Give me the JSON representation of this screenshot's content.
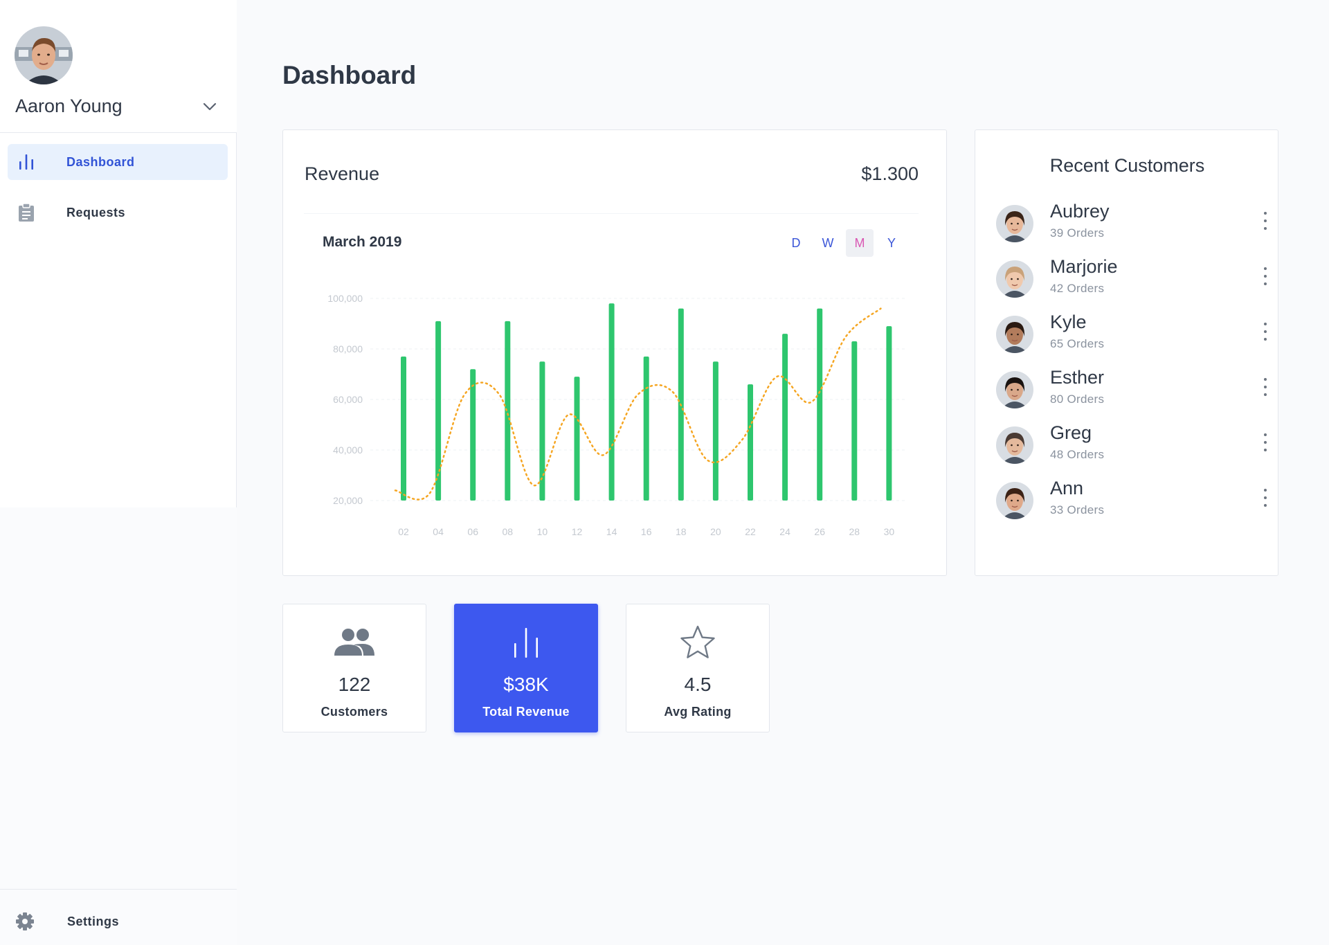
{
  "user": {
    "name": "Aaron Young"
  },
  "nav": {
    "items": [
      {
        "label": "Dashboard",
        "icon": "bar-chart-icon",
        "active": true
      },
      {
        "label": "Requests",
        "icon": "clipboard-icon",
        "active": false
      }
    ],
    "settings_label": "Settings"
  },
  "page": {
    "title": "Dashboard"
  },
  "revenue": {
    "title": "Revenue",
    "total": "$1.300",
    "period": "March 2019",
    "range_tabs": [
      "D",
      "W",
      "M",
      "Y"
    ],
    "active_range": "M"
  },
  "chart_data": {
    "type": "bar",
    "title": "",
    "xlabel": "",
    "ylabel": "",
    "y_ticks": [
      "100,000",
      "80,000",
      "60,000",
      "40,000",
      "20,000"
    ],
    "ylim": [
      20000,
      100000
    ],
    "categories": [
      "02",
      "04",
      "06",
      "08",
      "10",
      "12",
      "14",
      "16",
      "18",
      "20",
      "22",
      "24",
      "26",
      "28",
      "30"
    ],
    "series": [
      {
        "type": "bar",
        "color": "#2ec66e",
        "values": [
          77000,
          91000,
          72000,
          91000,
          75000,
          69000,
          98000,
          77000,
          96000,
          75000,
          66000,
          86000,
          96000,
          83000,
          89000
        ]
      },
      {
        "type": "line",
        "style": "dotted",
        "color": "#f5a623",
        "x": [
          1,
          2,
          3,
          4,
          5,
          6,
          7,
          8,
          9,
          10,
          11,
          12,
          13,
          14,
          15
        ],
        "values": [
          24000,
          23000,
          62000,
          62000,
          26000,
          54000,
          38000,
          62000,
          63000,
          36000,
          44000,
          69000,
          59000,
          85000,
          96000
        ]
      }
    ],
    "grid": true
  },
  "customers": {
    "title": "Recent Customers",
    "items": [
      {
        "name": "Aubrey",
        "orders": "39 Orders",
        "skin": "#e7b89a",
        "hair": "#3a2418"
      },
      {
        "name": "Marjorie",
        "orders": "42 Orders",
        "skin": "#f0c9ad",
        "hair": "#c9a27a"
      },
      {
        "name": "Kyle",
        "orders": "65 Orders",
        "skin": "#b27c5c",
        "hair": "#2a1a12"
      },
      {
        "name": "Esther",
        "orders": "80 Orders",
        "skin": "#d9a88a",
        "hair": "#1a1310"
      },
      {
        "name": "Greg",
        "orders": "48 Orders",
        "skin": "#e4b99c",
        "hair": "#4a3a33"
      },
      {
        "name": "Ann",
        "orders": "33 Orders",
        "skin": "#dfa98a",
        "hair": "#3c2216"
      }
    ]
  },
  "stats": [
    {
      "value": "122",
      "label": "Customers",
      "icon": "users-icon",
      "accent": false
    },
    {
      "value": "$38K",
      "label": "Total Revenue",
      "icon": "bar-chart-icon",
      "accent": true
    },
    {
      "value": "4.5",
      "label": "Avg Rating",
      "icon": "star-icon",
      "accent": false
    }
  ],
  "colors": {
    "accent": "#3d58ef",
    "nav_active_bg": "#e8f1fd",
    "bar": "#2ec66e",
    "trend_line": "#f5a623"
  }
}
